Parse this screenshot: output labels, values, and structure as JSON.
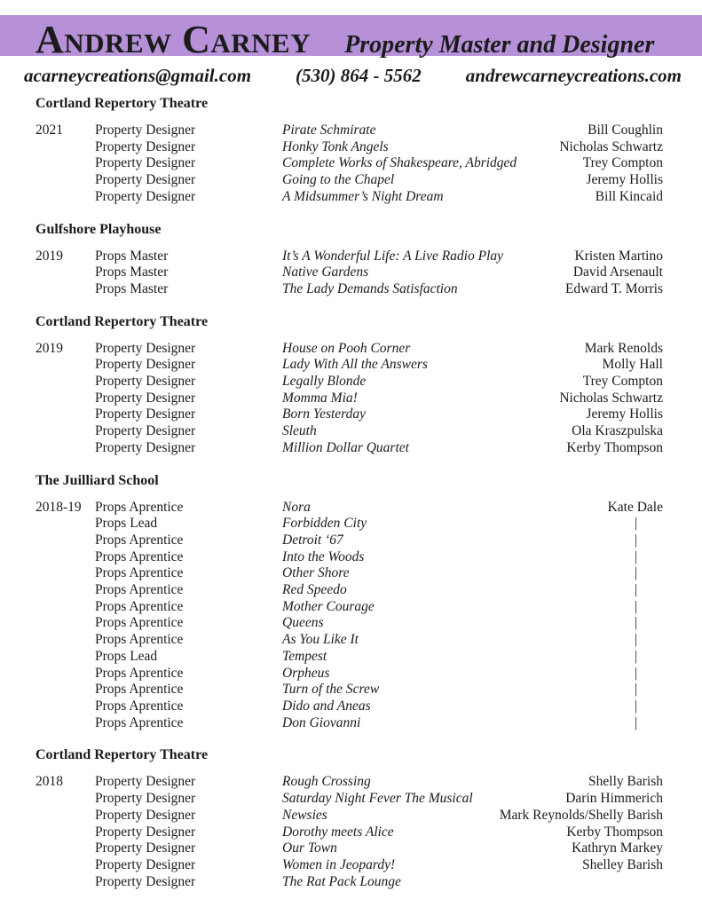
{
  "header": {
    "name": "Andrew Carney",
    "title": "Property Master and Designer"
  },
  "contact": {
    "email": "acarneycreations@gmail.com",
    "phone": "(530) 864 - 5562",
    "website": "andrewcarneycreations.com"
  },
  "colors": {
    "accent_band": "#b691d8",
    "text": "#1b1b1b"
  },
  "ditto_mark": "|",
  "sections": [
    {
      "venue": "Cortland Repertory Theatre",
      "year": "2021",
      "rows": [
        {
          "role": "Property Designer",
          "show": "Pirate Schmirate",
          "collaborator": "Bill Coughlin"
        },
        {
          "role": "Property Designer",
          "show": "Honky Tonk Angels",
          "collaborator": "Nicholas Schwartz"
        },
        {
          "role": "Property Designer",
          "show": "Complete Works of Shakespeare, Abridged",
          "collaborator": "Trey Compton"
        },
        {
          "role": "Property Designer",
          "show": "Going to the Chapel",
          "collaborator": "Jeremy Hollis"
        },
        {
          "role": "Property Designer",
          "show": "A Midsummer’s Night Dream",
          "collaborator": "Bill Kincaid"
        }
      ]
    },
    {
      "venue": "Gulfshore Playhouse",
      "year": "2019",
      "rows": [
        {
          "role": "Props Master",
          "show": "It’s A Wonderful Life: A Live Radio Play",
          "collaborator": "Kristen Martino"
        },
        {
          "role": "Props Master",
          "show": "Native Gardens",
          "collaborator": "David Arsenault"
        },
        {
          "role": "Props Master",
          "show": "The Lady Demands Satisfaction",
          "collaborator": "Edward T. Morris"
        }
      ]
    },
    {
      "venue": "Cortland Repertory Theatre",
      "year": "2019",
      "rows": [
        {
          "role": "Property Designer",
          "show": "House on Pooh Corner",
          "collaborator": "Mark Renolds"
        },
        {
          "role": "Property Designer",
          "show": "Lady With All the Answers",
          "collaborator": "Molly Hall"
        },
        {
          "role": "Property Designer",
          "show": "Legally Blonde",
          "collaborator": "Trey Compton"
        },
        {
          "role": "Property Designer",
          "show": "Momma Mia!",
          "collaborator": "Nicholas Schwartz"
        },
        {
          "role": "Property Designer",
          "show": "Born Yesterday",
          "collaborator": "Jeremy Hollis"
        },
        {
          "role": "Property Designer",
          "show": "Sleuth",
          "collaborator": "Ola Kraszpulska"
        },
        {
          "role": "Property Designer",
          "show": "Million Dollar Quartet",
          "collaborator": "Kerby Thompson"
        }
      ]
    },
    {
      "venue": "The Juilliard School",
      "year": "2018-19",
      "rows": [
        {
          "role": "Props Aprentice",
          "show": "Nora",
          "collaborator": "Kate Dale"
        },
        {
          "role": "Props Lead",
          "show": "Forbidden City",
          "collaborator": "|"
        },
        {
          "role": "Props Aprentice",
          "show": "Detroit ‘67",
          "collaborator": "|"
        },
        {
          "role": "Props Aprentice",
          "show": "Into the Woods",
          "collaborator": "|"
        },
        {
          "role": "Props Aprentice",
          "show": "Other Shore",
          "collaborator": "|"
        },
        {
          "role": "Props Aprentice",
          "show": "Red Speedo",
          "collaborator": "|"
        },
        {
          "role": "Props Aprentice",
          "show": "Mother Courage",
          "collaborator": "|"
        },
        {
          "role": "Props Aprentice",
          "show": "Queens",
          "collaborator": "|"
        },
        {
          "role": "Props Aprentice",
          "show": "As You Like It",
          "collaborator": "|"
        },
        {
          "role": "Props Lead",
          "show": "Tempest",
          "collaborator": "|"
        },
        {
          "role": "Props Aprentice",
          "show": "Orpheus",
          "collaborator": "|"
        },
        {
          "role": "Props Aprentice",
          "show": "Turn of the Screw",
          "collaborator": "|"
        },
        {
          "role": "Props Aprentice",
          "show": "Dido and Aneas",
          "collaborator": "|"
        },
        {
          "role": "Props Aprentice",
          "show": "Don Giovanni",
          "collaborator": "|"
        }
      ]
    },
    {
      "venue": "Cortland Repertory Theatre",
      "year": "2018",
      "rows": [
        {
          "role": "Property Designer",
          "show": "Rough Crossing",
          "collaborator": "Shelly Barish"
        },
        {
          "role": "Property Designer",
          "show": "Saturday Night Fever The Musical",
          "collaborator": "Darin Himmerich"
        },
        {
          "role": "Property Designer",
          "show": "Newsies",
          "collaborator": "Mark Reynolds/Shelly Barish"
        },
        {
          "role": "Property Designer",
          "show": "Dorothy meets Alice",
          "collaborator": "Kerby Thompson"
        },
        {
          "role": "Property Designer",
          "show": "Our Town",
          "collaborator": "Kathryn Markey"
        },
        {
          "role": "Property Designer",
          "show": "Women in Jeopardy!",
          "collaborator": "Shelley Barish"
        },
        {
          "role": "Property Designer",
          "show": "The Rat Pack Lounge",
          "collaborator": ""
        }
      ]
    }
  ]
}
